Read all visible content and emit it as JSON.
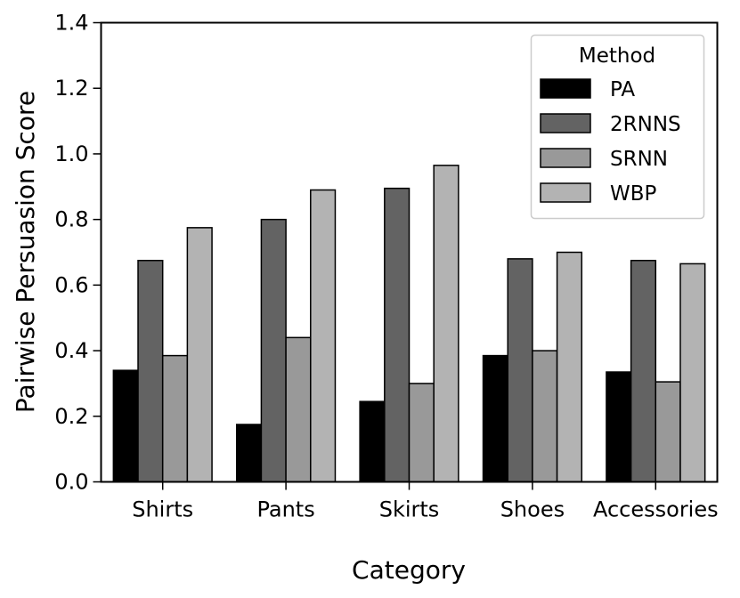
{
  "chart_data": {
    "type": "bar",
    "title": "",
    "xlabel": "Category",
    "ylabel": "Pairwise Persuasion Score",
    "ylim": [
      0.0,
      1.4
    ],
    "yticks": [
      "0.0",
      "0.2",
      "0.4",
      "0.6",
      "0.8",
      "1.0",
      "1.2",
      "1.4"
    ],
    "categories": [
      "Shirts",
      "Pants",
      "Skirts",
      "Shoes",
      "Accessories"
    ],
    "series": [
      {
        "name": "PA",
        "color": "#000000",
        "values": [
          0.34,
          0.175,
          0.245,
          0.385,
          0.335
        ]
      },
      {
        "name": "2RNNS",
        "color": "#636363",
        "values": [
          0.675,
          0.8,
          0.895,
          0.68,
          0.675
        ]
      },
      {
        "name": "SRNN",
        "color": "#999999",
        "values": [
          0.385,
          0.44,
          0.3,
          0.4,
          0.305
        ]
      },
      {
        "name": "WBP",
        "color": "#b3b3b3",
        "values": [
          0.775,
          0.89,
          0.965,
          0.7,
          0.665
        ]
      }
    ],
    "legend": {
      "title": "Method",
      "position": "top-right"
    },
    "grid": false
  }
}
